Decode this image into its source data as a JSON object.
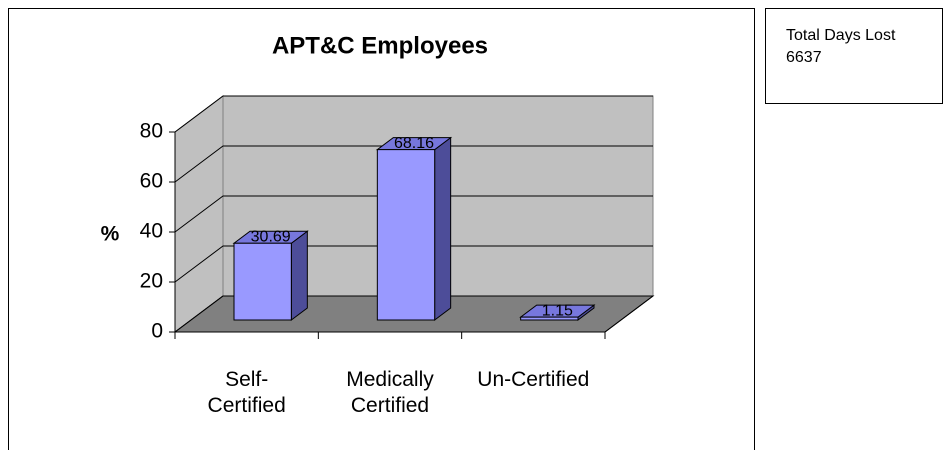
{
  "chart_data": {
    "type": "bar3d",
    "title": "APT&C Employees",
    "y_label": "%",
    "categories": [
      "Self-Certified",
      "Medically Certified",
      "Un-Certified"
    ],
    "values": [
      30.69,
      68.16,
      1.15
    ],
    "color": "#9999ff",
    "ylim": [
      0,
      80
    ],
    "yticks": [
      0,
      20,
      40,
      60,
      80
    ],
    "grid": true,
    "side_box": {
      "label": "Total Days Lost",
      "value": "6637"
    }
  }
}
